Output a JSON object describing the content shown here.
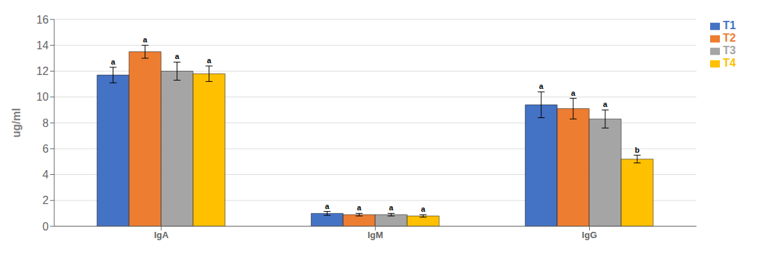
{
  "chart_data": {
    "type": "bar",
    "ylabel": "ug/ml",
    "categories": [
      "IgA",
      "IgM",
      "IgG"
    ],
    "series": [
      {
        "name": "T1",
        "color": "#4472C4",
        "values": [
          11.7,
          1.0,
          9.4
        ],
        "errors": [
          0.6,
          0.15,
          1.0
        ],
        "annotations": [
          "a",
          "a",
          "a"
        ]
      },
      {
        "name": "T2",
        "color": "#ED7D31",
        "values": [
          13.5,
          0.9,
          9.1
        ],
        "errors": [
          0.5,
          0.1,
          0.8
        ],
        "annotations": [
          "a",
          "a",
          "a"
        ]
      },
      {
        "name": "T3",
        "color": "#A5A5A5",
        "values": [
          12.0,
          0.9,
          8.3
        ],
        "errors": [
          0.7,
          0.1,
          0.7
        ],
        "annotations": [
          "a",
          "a",
          "a"
        ]
      },
      {
        "name": "T4",
        "color": "#FFC000",
        "values": [
          11.8,
          0.8,
          5.2
        ],
        "errors": [
          0.6,
          0.1,
          0.3
        ],
        "annotations": [
          "a",
          "a",
          "b"
        ]
      }
    ],
    "ylim": [
      0,
      16
    ],
    "yticks": [
      0,
      2,
      4,
      6,
      8,
      10,
      12,
      14,
      16
    ],
    "grid": true,
    "legend": "right"
  }
}
